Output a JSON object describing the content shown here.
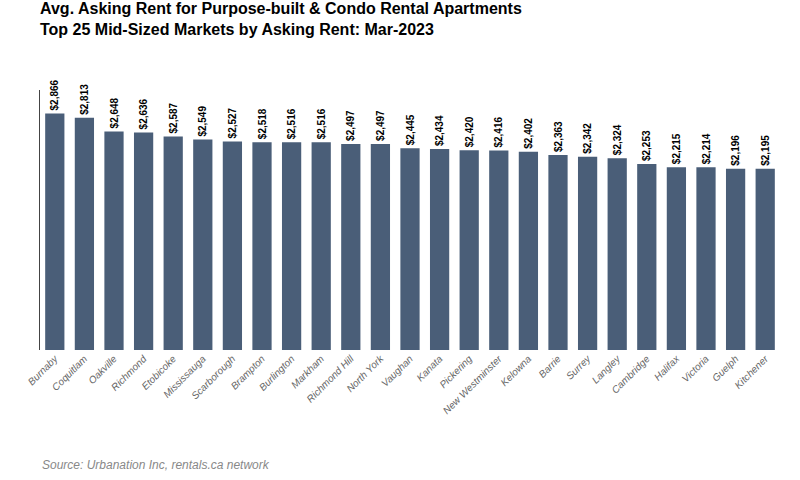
{
  "chart_data": {
    "type": "bar",
    "title": "Avg. Asking Rent for Purpose-built & Condo Rental Apartments",
    "subtitle": "Top 25 Mid-Sized Markets by Asking Rent: Mar-2023",
    "annotations": [
      "Source: Urbanation Inc, rentals.ca network"
    ],
    "categories": [
      "Burnaby",
      "Coquitlam",
      "Oakville",
      "Richmond",
      "Etobicoke",
      "Mississauga",
      "Scarborough",
      "Brampton",
      "Burlington",
      "Markham",
      "Richmond Hill",
      "North York",
      "Vaughan",
      "Kanata",
      "Pickering",
      "New Westminster",
      "Kelowna",
      "Barrie",
      "Surrey",
      "Langley",
      "Cambridge",
      "Halifax",
      "Victoria",
      "Guelph",
      "Kitchener"
    ],
    "values": [
      2866,
      2813,
      2648,
      2636,
      2587,
      2549,
      2527,
      2518,
      2516,
      2516,
      2497,
      2497,
      2445,
      2434,
      2420,
      2416,
      2402,
      2363,
      2342,
      2324,
      2253,
      2215,
      2214,
      2196,
      2195
    ],
    "value_labels": [
      "$2,866",
      "$2,813",
      "$2,648",
      "$2,636",
      "$2,587",
      "$2,549",
      "$2,527",
      "$2,518",
      "$2,516",
      "$2,516",
      "$2,497",
      "$2,497",
      "$2,445",
      "$2,434",
      "$2,420",
      "$2,416",
      "$2,402",
      "$2,363",
      "$2,342",
      "$2,324",
      "$2,253",
      "$2,215",
      "$2,214",
      "$2,196",
      "$2,195"
    ],
    "color": "#4a5e78",
    "ylim": [
      0,
      3150
    ],
    "grid": false,
    "data_labels": true,
    "tick_labels": "x"
  }
}
